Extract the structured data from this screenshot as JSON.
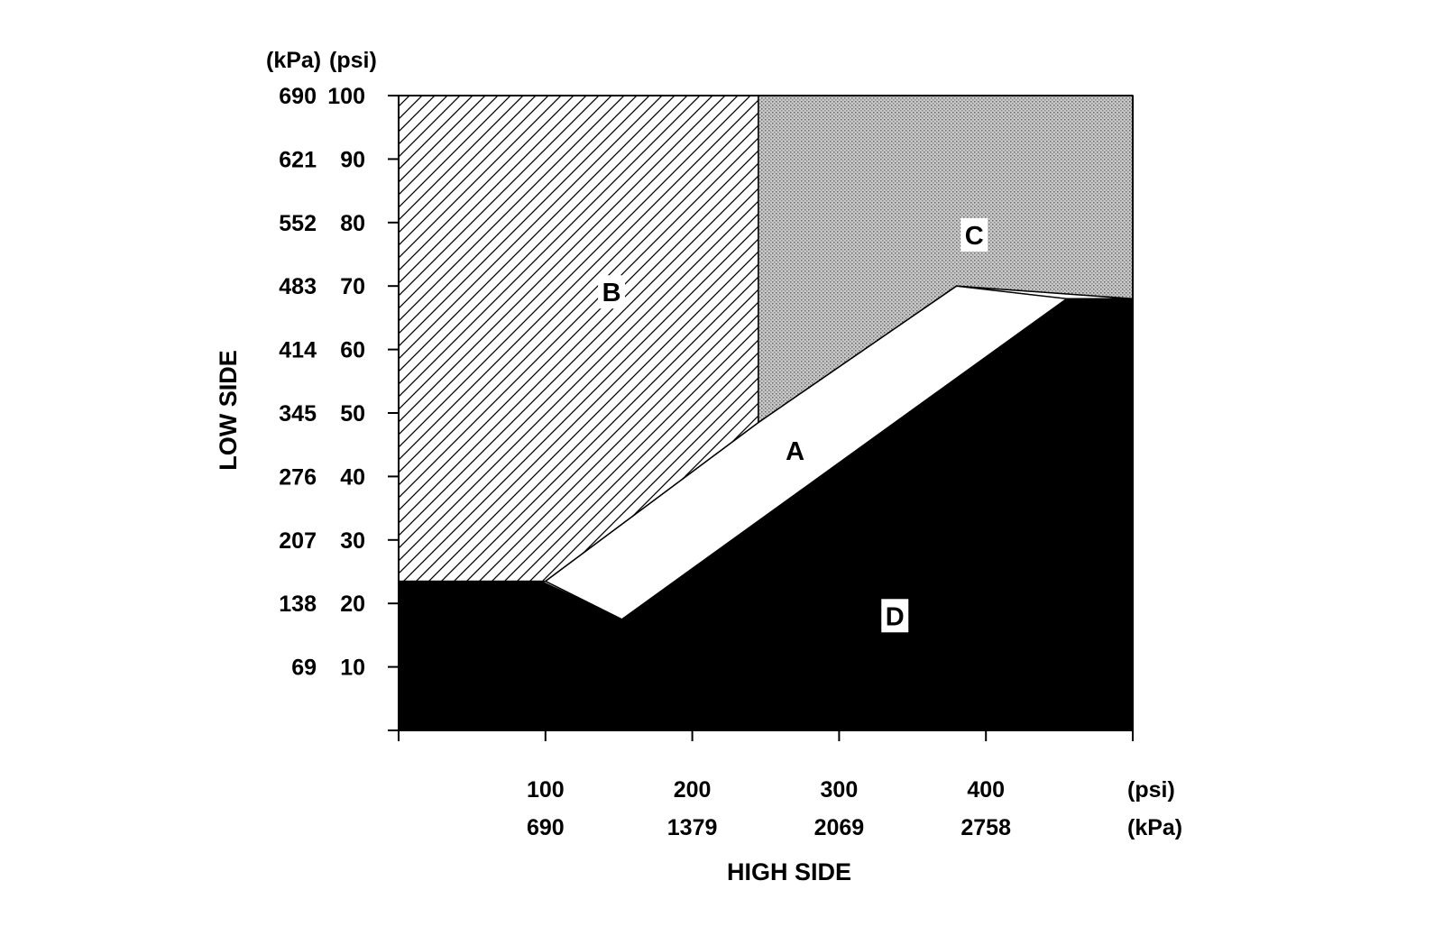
{
  "chart_data": {
    "type": "area",
    "title": "",
    "xlabel": "HIGH SIDE",
    "ylabel": "LOW SIDE",
    "x_unit_primary": "(psi)",
    "x_unit_secondary": "(kPa)",
    "y_unit_secondary": "(kPa)",
    "y_unit_primary": "(psi)",
    "xlim": [
      0,
      500
    ],
    "ylim": [
      0,
      100
    ],
    "x_ticks": [
      {
        "psi": 100,
        "kpa": "690"
      },
      {
        "psi": 200,
        "kpa": "1379"
      },
      {
        "psi": 300,
        "kpa": "2069"
      },
      {
        "psi": 400,
        "kpa": "2758"
      }
    ],
    "y_ticks": [
      {
        "psi": 10,
        "kpa": "69"
      },
      {
        "psi": 20,
        "kpa": "138"
      },
      {
        "psi": 30,
        "kpa": "207"
      },
      {
        "psi": 40,
        "kpa": "276"
      },
      {
        "psi": 50,
        "kpa": "345"
      },
      {
        "psi": 60,
        "kpa": "414"
      },
      {
        "psi": 70,
        "kpa": "483"
      },
      {
        "psi": 80,
        "kpa": "552"
      },
      {
        "psi": 90,
        "kpa": "621"
      },
      {
        "psi": 100,
        "kpa": "690"
      }
    ],
    "regions": [
      {
        "label": "B",
        "fill": "hatch",
        "points": [
          [
            0,
            100
          ],
          [
            245,
            100
          ],
          [
            245,
            48.5
          ],
          [
            100,
            23.5
          ],
          [
            0,
            23.5
          ]
        ],
        "label_pos": [
          145,
          69
        ]
      },
      {
        "label": "C",
        "fill": "dots",
        "points": [
          [
            245,
            100
          ],
          [
            500,
            100
          ],
          [
            500,
            68
          ],
          [
            380,
            70
          ],
          [
            245,
            48.5
          ]
        ],
        "label_pos": [
          392,
          78
        ]
      },
      {
        "label": "D",
        "fill": "solid",
        "points": [
          [
            0,
            0
          ],
          [
            500,
            0
          ],
          [
            500,
            68
          ],
          [
            455,
            68
          ],
          [
            152,
            17.5
          ],
          [
            97,
            23.5
          ],
          [
            0,
            23.5
          ]
        ],
        "label_pos": [
          338,
          18
        ]
      },
      {
        "label": "A",
        "fill": "none",
        "points": [
          [
            100,
            23.5
          ],
          [
            152,
            17.5
          ],
          [
            455,
            68
          ],
          [
            380,
            70
          ],
          [
            245,
            48.5
          ]
        ],
        "label_pos": [
          270,
          44
        ]
      }
    ]
  }
}
